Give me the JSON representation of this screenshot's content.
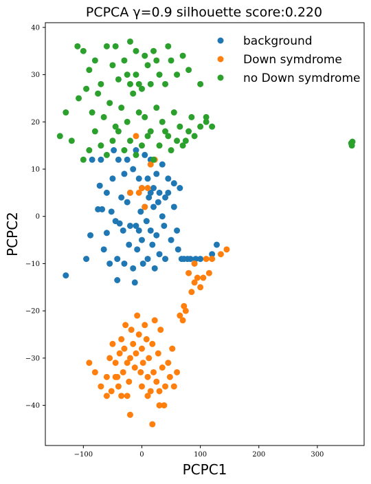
{
  "chart_data": {
    "type": "scatter",
    "title": "PCPCA γ=0.9 silhouette score:0.220",
    "xlabel": "PCPC1",
    "ylabel": "PCPC2",
    "xlim": [
      -165,
      380
    ],
    "ylim": [
      -48.5,
      41
    ],
    "xticks": [
      -100,
      0,
      100,
      200,
      300
    ],
    "yticks": [
      -40,
      -30,
      -20,
      -10,
      0,
      10,
      20,
      30,
      40
    ],
    "x_tick_labels": [
      "−100",
      "0",
      "100",
      "200",
      "300"
    ],
    "y_tick_labels": [
      "−40",
      "−30",
      "−20",
      "−10",
      "0",
      "10",
      "20",
      "30",
      "40"
    ],
    "legend_position": "top-right",
    "grid": false,
    "series": [
      {
        "name": "background",
        "color": "#1f77b4",
        "points": [
          [
            -130,
            -12.5
          ],
          [
            -95,
            -9
          ],
          [
            -88,
            -4
          ],
          [
            -75,
            1.5
          ],
          [
            -68,
            1.5
          ],
          [
            -72,
            6.5
          ],
          [
            -65,
            -7
          ],
          [
            -60,
            -3.5
          ],
          [
            -55,
            -10
          ],
          [
            -52,
            1
          ],
          [
            -45,
            -1
          ],
          [
            -42,
            -13.5
          ],
          [
            -42,
            -9
          ],
          [
            -38,
            -1.5
          ],
          [
            -35,
            4
          ],
          [
            -32,
            -3
          ],
          [
            -30,
            -10
          ],
          [
            -25,
            3
          ],
          [
            -22,
            -6
          ],
          [
            -20,
            -2
          ],
          [
            -15,
            -11
          ],
          [
            -12,
            -14
          ],
          [
            -10,
            -2
          ],
          [
            -8,
            -7
          ],
          [
            -5,
            -3
          ],
          [
            -2,
            1
          ],
          [
            0,
            -5
          ],
          [
            2,
            -10
          ],
          [
            5,
            2
          ],
          [
            8,
            -1
          ],
          [
            10,
            -9
          ],
          [
            12,
            4
          ],
          [
            15,
            -3
          ],
          [
            18,
            -6
          ],
          [
            20,
            2
          ],
          [
            22,
            -11
          ],
          [
            25,
            -4
          ],
          [
            28,
            3
          ],
          [
            30,
            -8
          ],
          [
            35,
            0
          ],
          [
            38,
            -2
          ],
          [
            40,
            -9
          ],
          [
            45,
            5
          ],
          [
            50,
            -5
          ],
          [
            55,
            2
          ],
          [
            60,
            -3
          ],
          [
            62,
            -7
          ],
          [
            68,
            -9
          ],
          [
            72,
            -9
          ],
          [
            78,
            -9
          ],
          [
            83,
            -9
          ],
          [
            92,
            -9
          ],
          [
            100,
            -9
          ],
          [
            120,
            -8
          ],
          [
            128,
            -6
          ],
          [
            -15,
            10
          ],
          [
            -5,
            8
          ],
          [
            5,
            13
          ],
          [
            15,
            12
          ],
          [
            25,
            9
          ],
          [
            35,
            11
          ],
          [
            45,
            8
          ],
          [
            55,
            7
          ],
          [
            65,
            6
          ],
          [
            -40,
            12
          ],
          [
            -30,
            9
          ],
          [
            -20,
            5
          ],
          [
            0,
            6
          ],
          [
            10,
            8
          ],
          [
            20,
            6
          ],
          [
            30,
            5
          ],
          [
            40,
            4
          ],
          [
            -50,
            8
          ],
          [
            -60,
            5
          ],
          [
            -10,
            14
          ],
          [
            -70,
            12
          ],
          [
            -85,
            12
          ],
          [
            -48,
            14
          ],
          [
            -25,
            12
          ],
          [
            15,
            5
          ]
        ]
      },
      {
        "name": "Down symdrome",
        "color": "#ff7f0e",
        "points": [
          [
            15,
            11
          ],
          [
            22,
            12
          ],
          [
            -10,
            17
          ],
          [
            0,
            6
          ],
          [
            -5,
            5
          ],
          [
            -20,
            5
          ],
          [
            10,
            6
          ],
          [
            5,
            2
          ],
          [
            80,
            -12
          ],
          [
            90,
            -14
          ],
          [
            85,
            -16
          ],
          [
            100,
            -15
          ],
          [
            105,
            -13
          ],
          [
            115,
            -12
          ],
          [
            120,
            -9
          ],
          [
            135,
            -8
          ],
          [
            145,
            -7
          ],
          [
            110,
            -9
          ],
          [
            90,
            -10
          ],
          [
            95,
            -13
          ],
          [
            72,
            -19
          ],
          [
            75,
            -20
          ],
          [
            70,
            -22
          ],
          [
            65,
            -21
          ],
          [
            -70,
            -36
          ],
          [
            -80,
            -33
          ],
          [
            -90,
            -31
          ],
          [
            -60,
            -34
          ],
          [
            -55,
            -30
          ],
          [
            -50,
            -27
          ],
          [
            -45,
            -31
          ],
          [
            -42,
            -34
          ],
          [
            -38,
            -29
          ],
          [
            -35,
            -26
          ],
          [
            -32,
            -33
          ],
          [
            -30,
            -28
          ],
          [
            -28,
            -23
          ],
          [
            -25,
            -31
          ],
          [
            -22,
            -35
          ],
          [
            -20,
            -30
          ],
          [
            -18,
            -24
          ],
          [
            -15,
            -27
          ],
          [
            -12,
            -32
          ],
          [
            -10,
            -29
          ],
          [
            -8,
            -21
          ],
          [
            -5,
            -25
          ],
          [
            -2,
            -33
          ],
          [
            0,
            -28
          ],
          [
            2,
            -31
          ],
          [
            5,
            -23
          ],
          [
            8,
            -26
          ],
          [
            10,
            -34
          ],
          [
            12,
            -30
          ],
          [
            15,
            -37
          ],
          [
            18,
            -27
          ],
          [
            20,
            -33
          ],
          [
            22,
            -22
          ],
          [
            25,
            -35
          ],
          [
            28,
            -29
          ],
          [
            30,
            -37
          ],
          [
            32,
            -24
          ],
          [
            35,
            -32
          ],
          [
            38,
            -40
          ],
          [
            40,
            -36
          ],
          [
            45,
            -31
          ],
          [
            48,
            -34
          ],
          [
            52,
            -28
          ],
          [
            55,
            -36
          ],
          [
            60,
            -33
          ],
          [
            -20,
            -42
          ],
          [
            -25,
            -38
          ],
          [
            -35,
            -38
          ],
          [
            -40,
            -36
          ],
          [
            -45,
            -34
          ],
          [
            -52,
            -37
          ],
          [
            -60,
            -38
          ],
          [
            0,
            -36
          ],
          [
            10,
            -38
          ],
          [
            18,
            -44
          ],
          [
            30,
            -40
          ]
        ]
      },
      {
        "name": "no Down symdrome",
        "color": "#2ca02c",
        "points": [
          [
            -110,
            36
          ],
          [
            -100,
            35
          ],
          [
            -90,
            31
          ],
          [
            -80,
            33
          ],
          [
            -70,
            28
          ],
          [
            -60,
            36
          ],
          [
            -50,
            32
          ],
          [
            -40,
            29
          ],
          [
            -30,
            33
          ],
          [
            -20,
            37
          ],
          [
            -10,
            30
          ],
          [
            0,
            27
          ],
          [
            10,
            32
          ],
          [
            20,
            35
          ],
          [
            30,
            30
          ],
          [
            40,
            28
          ],
          [
            50,
            33
          ],
          [
            60,
            30
          ],
          [
            70,
            34
          ],
          [
            80,
            31
          ],
          [
            -108,
            25
          ],
          [
            -95,
            27
          ],
          [
            -85,
            22
          ],
          [
            -75,
            26
          ],
          [
            -65,
            21
          ],
          [
            -55,
            24
          ],
          [
            -45,
            19
          ],
          [
            -35,
            23
          ],
          [
            -25,
            20
          ],
          [
            -15,
            26
          ],
          [
            -5,
            22
          ],
          [
            5,
            21
          ],
          [
            15,
            18
          ],
          [
            25,
            23
          ],
          [
            35,
            20
          ],
          [
            45,
            17
          ],
          [
            55,
            22
          ],
          [
            65,
            19
          ],
          [
            75,
            16
          ],
          [
            85,
            21
          ],
          [
            -130,
            22
          ],
          [
            -140,
            17
          ],
          [
            -120,
            16
          ],
          [
            -100,
            12
          ],
          [
            -90,
            14
          ],
          [
            -80,
            18
          ],
          [
            -70,
            15
          ],
          [
            -60,
            13
          ],
          [
            -50,
            16
          ],
          [
            -40,
            18
          ],
          [
            -30,
            14
          ],
          [
            -20,
            16
          ],
          [
            -10,
            13
          ],
          [
            0,
            15
          ],
          [
            10,
            17
          ],
          [
            20,
            12
          ],
          [
            30,
            15
          ],
          [
            40,
            18
          ],
          [
            50,
            14
          ],
          [
            60,
            16
          ],
          [
            70,
            15
          ],
          [
            80,
            18
          ],
          [
            90,
            17
          ],
          [
            100,
            19
          ],
          [
            110,
            21
          ],
          [
            120,
            19
          ],
          [
            -10,
            35
          ],
          [
            5,
            34
          ],
          [
            25,
            33
          ],
          [
            45,
            36
          ],
          [
            100,
            28
          ],
          [
            110,
            20
          ],
          [
            -20,
            28
          ],
          [
            -5,
            28
          ],
          [
            15,
            28
          ],
          [
            -45,
            36
          ],
          [
            -25,
            30
          ],
          [
            358,
            15.5
          ],
          [
            359,
            15
          ],
          [
            360,
            15.8
          ]
        ]
      }
    ]
  }
}
